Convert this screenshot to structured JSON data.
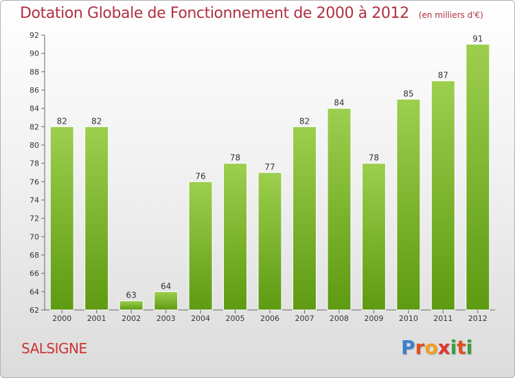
{
  "header": {
    "title": "Dotation Globale de Fonctionnement de 2000 à 2012",
    "subtitle": "(en milliers d'€)"
  },
  "footer": {
    "place": "SALSIGNE",
    "logo": [
      "P",
      "r",
      "o",
      "x",
      "i",
      "t",
      "i"
    ],
    "logo_colors": [
      "#3b7fd0",
      "#e05020",
      "#f0a020",
      "#e0352a",
      "#3aa040",
      "#e05020",
      "#3aa040"
    ]
  },
  "colors": {
    "bar_top": "#9ccf4e",
    "bar_bottom": "#5e9a12",
    "title": "#b03040",
    "place": "#cc3333"
  },
  "chart_data": {
    "type": "bar",
    "title": "Dotation Globale de Fonctionnement de 2000 à 2012",
    "subtitle": "(en milliers d'€)",
    "xlabel": "",
    "ylabel": "",
    "categories": [
      "2000",
      "2001",
      "2002",
      "2003",
      "2004",
      "2005",
      "2006",
      "2007",
      "2008",
      "2009",
      "2010",
      "2011",
      "2012"
    ],
    "values": [
      82,
      82,
      63,
      64,
      76,
      78,
      77,
      82,
      84,
      78,
      85,
      87,
      91
    ],
    "ylim": [
      62,
      92
    ],
    "yticks": [
      62,
      64,
      66,
      68,
      70,
      72,
      74,
      76,
      78,
      80,
      82,
      84,
      86,
      88,
      90,
      92
    ],
    "grid": false,
    "legend": "none"
  }
}
